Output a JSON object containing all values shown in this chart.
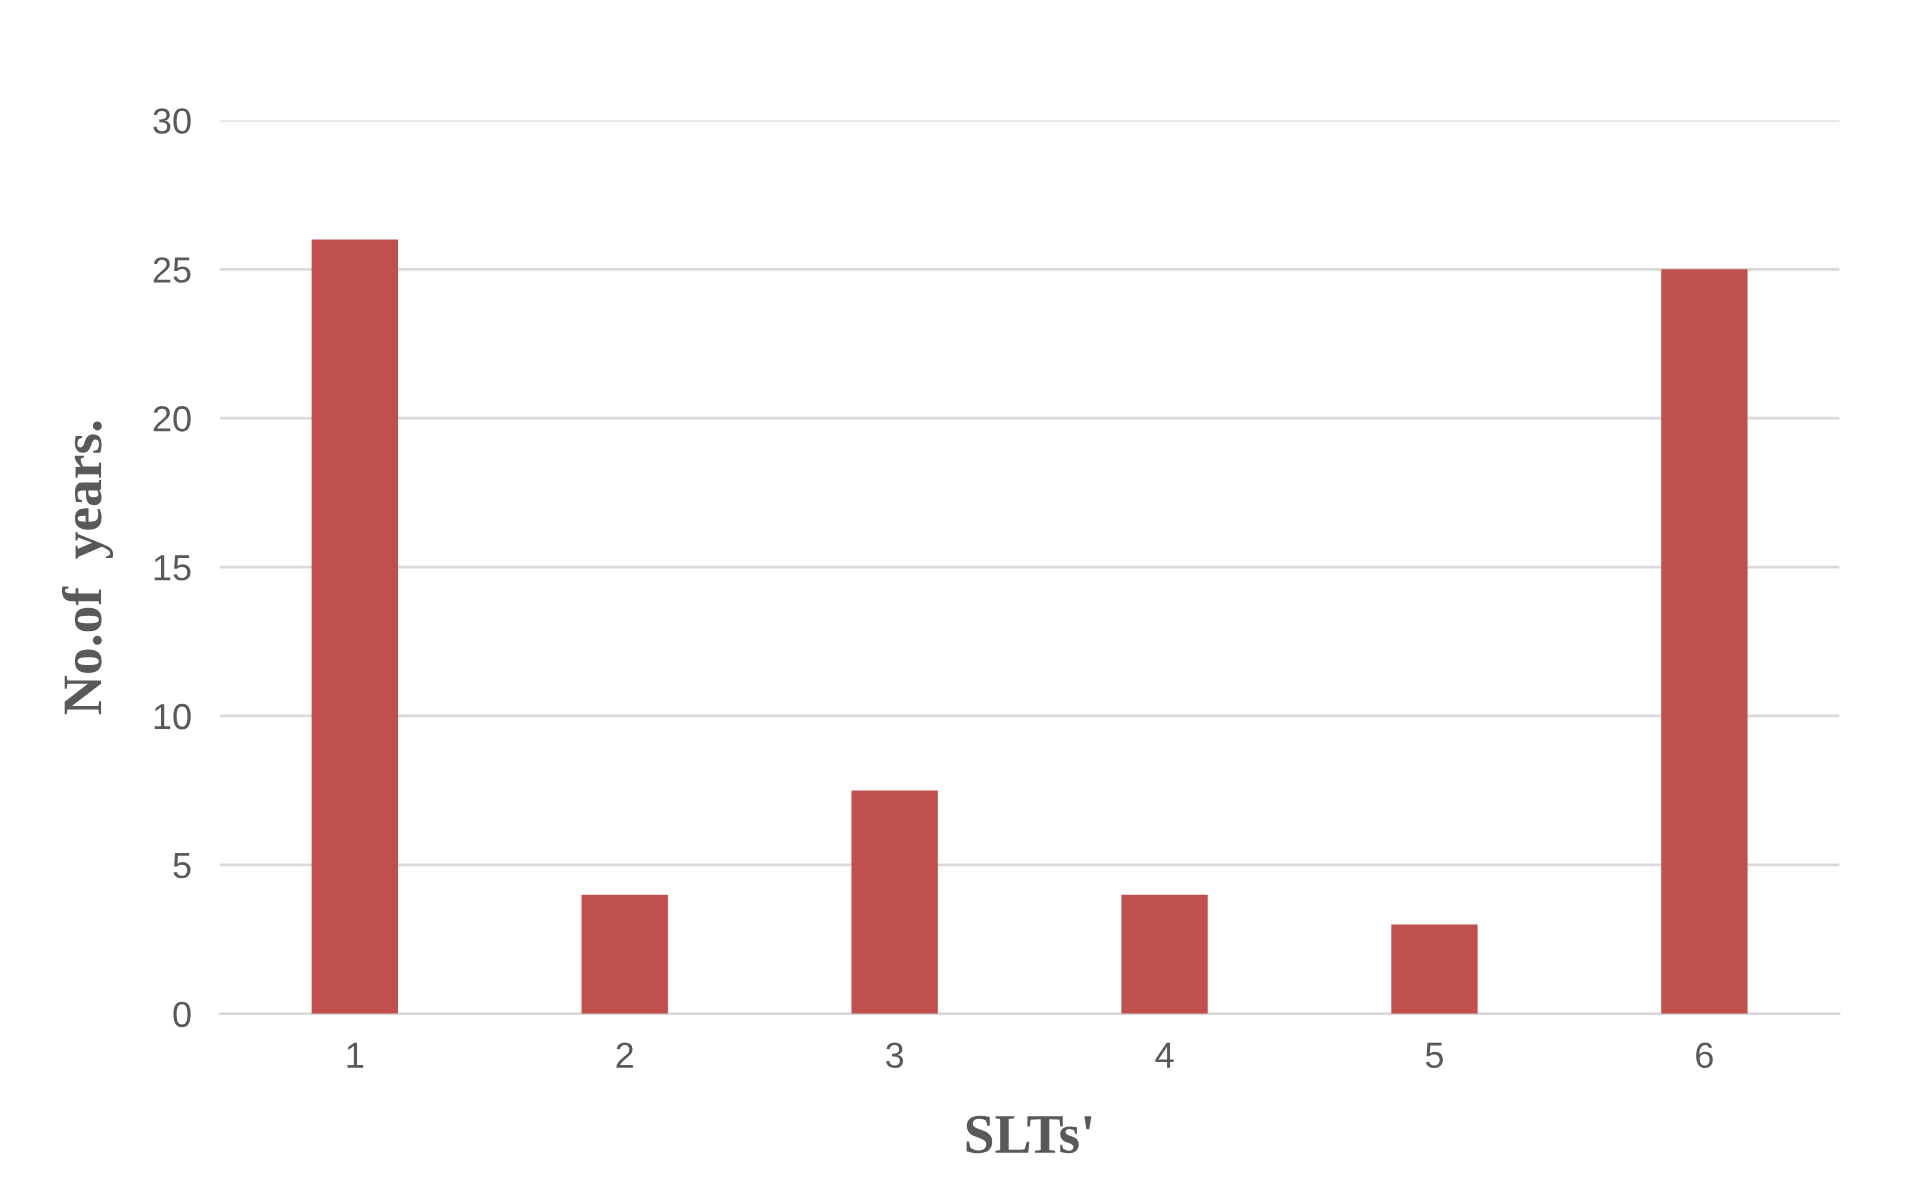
{
  "chart_data": {
    "type": "bar",
    "xlabel": "SLTs'",
    "ylabel": "No.of  years.",
    "categories": [
      "1",
      "2",
      "3",
      "4",
      "5",
      "6"
    ],
    "values": [
      26,
      4,
      7.5,
      4,
      3,
      25
    ],
    "color": "#c0504d",
    "ylim": [
      0,
      30
    ],
    "yticks": [
      0,
      5,
      10,
      15,
      20,
      25,
      30
    ],
    "grid": "y"
  }
}
